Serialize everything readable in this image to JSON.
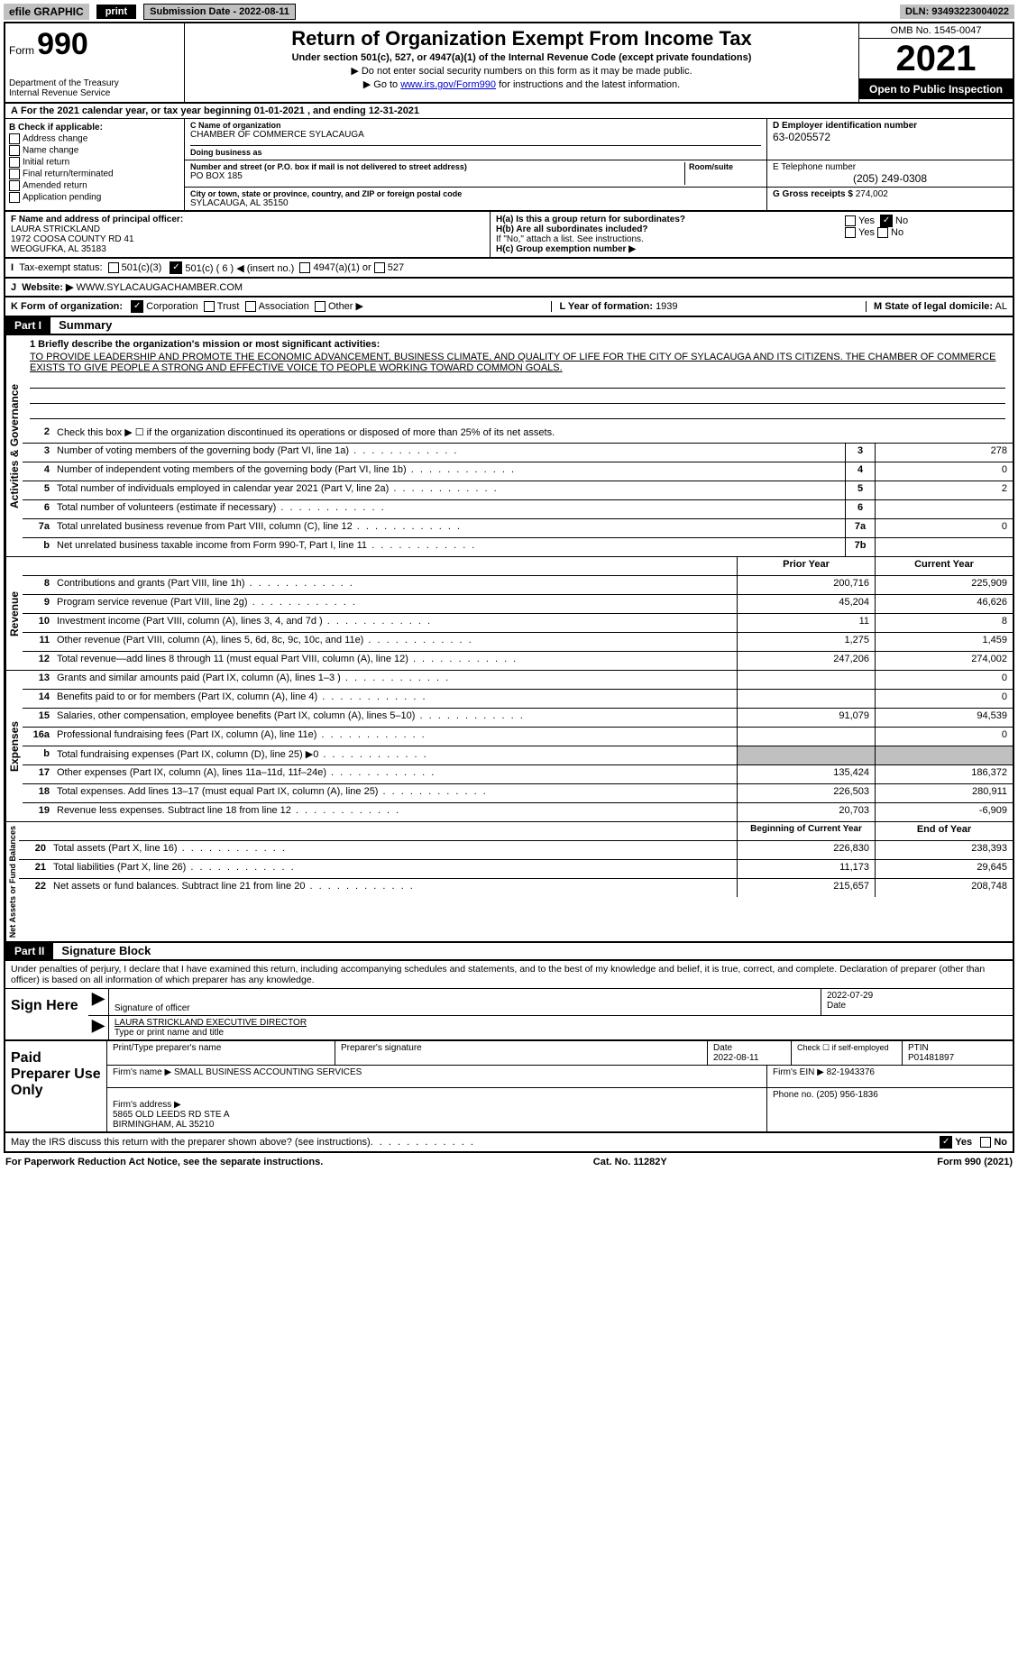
{
  "topbar": {
    "efile": "efile GRAPHIC",
    "print": "print",
    "submit_label": "Submission Date - 2022-08-11",
    "dln": "DLN: 93493223004022"
  },
  "header": {
    "form_word": "Form",
    "form_num": "990",
    "dept": "Department of the Treasury\nInternal Revenue Service",
    "title": "Return of Organization Exempt From Income Tax",
    "subtitle": "Under section 501(c), 527, or 4947(a)(1) of the Internal Revenue Code (except private foundations)",
    "note1": "▶ Do not enter social security numbers on this form as it may be made public.",
    "note2_pre": "▶ Go to ",
    "note2_link": "www.irs.gov/Form990",
    "note2_post": " for instructions and the latest information.",
    "omb": "OMB No. 1545-0047",
    "year": "2021",
    "open": "Open to Public Inspection"
  },
  "period": "For the 2021 calendar year, or tax year beginning 01-01-2021    , and ending 12-31-2021",
  "boxB": {
    "label": "B Check if applicable:",
    "items": [
      "Address change",
      "Name change",
      "Initial return",
      "Final return/terminated",
      "Amended return",
      "Application pending"
    ]
  },
  "boxC": {
    "name_lbl": "C Name of organization",
    "name": "CHAMBER OF COMMERCE SYLACAUGA",
    "dba_lbl": "Doing business as",
    "addr_lbl": "Number and street (or P.O. box if mail is not delivered to street address)",
    "room_lbl": "Room/suite",
    "addr": "PO BOX 185",
    "city_lbl": "City or town, state or province, country, and ZIP or foreign postal code",
    "city": "SYLACAUGA, AL  35150"
  },
  "boxD": {
    "ein_lbl": "D Employer identification number",
    "ein": "63-0205572",
    "phone_lbl": "E Telephone number",
    "phone": "(205) 249-0308",
    "gross_lbl": "G Gross receipts $",
    "gross": "274,002"
  },
  "boxF": {
    "lbl": "F Name and address of principal officer:",
    "name": "LAURA STRICKLAND",
    "addr1": "1972 COOSA COUNTY RD 41",
    "addr2": "WEOGUFKA, AL 35183"
  },
  "boxH": {
    "a": "H(a)  Is this a group return for subordinates?",
    "b": "H(b)  Are all subordinates included?",
    "bnote": "If \"No,\" attach a list. See instructions.",
    "c": "H(c)  Group exemption number ▶",
    "yes": "Yes",
    "no": "No"
  },
  "boxI": {
    "lbl": "Tax-exempt status:",
    "opts": [
      "501(c)(3)",
      "501(c) ( 6 ) ◀ (insert no.)",
      "4947(a)(1) or",
      "527"
    ]
  },
  "boxJ": {
    "lbl": "Website: ▶",
    "val": "WWW.SYLACAUGACHAMBER.COM"
  },
  "boxK": {
    "lbl": "K Form of organization:",
    "opts": [
      "Corporation",
      "Trust",
      "Association",
      "Other ▶"
    ]
  },
  "boxL": {
    "lbl": "L Year of formation:",
    "val": "1939"
  },
  "boxM": {
    "lbl": "M State of legal domicile:",
    "val": "AL"
  },
  "part1": {
    "header": "Part I",
    "title": "Summary",
    "mission_lbl": "1  Briefly describe the organization's mission or most significant activities:",
    "mission": "TO PROVIDE LEADERSHIP AND PROMOTE THE ECONOMIC ADVANCEMENT, BUSINESS CLIMATE, AND QUALITY OF LIFE FOR THE CITY OF SYLACAUGA AND ITS CITIZENS. THE CHAMBER OF COMMERCE EXISTS TO GIVE PEOPLE A STRONG AND EFFECTIVE VOICE TO PEOPLE WORKING TOWARD COMMON GOALS.",
    "line2": "Check this box ▶ ☐ if the organization discontinued its operations or disposed of more than 25% of its net assets.",
    "sections": {
      "gov_label": "Activities & Governance",
      "rev_label": "Revenue",
      "exp_label": "Expenses",
      "net_label": "Net Assets or Fund Balances"
    },
    "gov_lines": [
      {
        "n": "3",
        "t": "Number of voting members of the governing body (Part VI, line 1a)",
        "box": "3",
        "v": "278"
      },
      {
        "n": "4",
        "t": "Number of independent voting members of the governing body (Part VI, line 1b)",
        "box": "4",
        "v": "0"
      },
      {
        "n": "5",
        "t": "Total number of individuals employed in calendar year 2021 (Part V, line 2a)",
        "box": "5",
        "v": "2"
      },
      {
        "n": "6",
        "t": "Total number of volunteers (estimate if necessary)",
        "box": "6",
        "v": ""
      },
      {
        "n": "7a",
        "t": "Total unrelated business revenue from Part VIII, column (C), line 12",
        "box": "7a",
        "v": "0"
      },
      {
        "n": "b",
        "t": "Net unrelated business taxable income from Form 990-T, Part I, line 11",
        "box": "7b",
        "v": ""
      }
    ],
    "col_prior": "Prior Year",
    "col_current": "Current Year",
    "rev_lines": [
      {
        "n": "8",
        "t": "Contributions and grants (Part VIII, line 1h)",
        "p": "200,716",
        "c": "225,909"
      },
      {
        "n": "9",
        "t": "Program service revenue (Part VIII, line 2g)",
        "p": "45,204",
        "c": "46,626"
      },
      {
        "n": "10",
        "t": "Investment income (Part VIII, column (A), lines 3, 4, and 7d )",
        "p": "11",
        "c": "8"
      },
      {
        "n": "11",
        "t": "Other revenue (Part VIII, column (A), lines 5, 6d, 8c, 9c, 10c, and 11e)",
        "p": "1,275",
        "c": "1,459"
      },
      {
        "n": "12",
        "t": "Total revenue—add lines 8 through 11 (must equal Part VIII, column (A), line 12)",
        "p": "247,206",
        "c": "274,002"
      }
    ],
    "exp_lines": [
      {
        "n": "13",
        "t": "Grants and similar amounts paid (Part IX, column (A), lines 1–3 )",
        "p": "",
        "c": "0"
      },
      {
        "n": "14",
        "t": "Benefits paid to or for members (Part IX, column (A), line 4)",
        "p": "",
        "c": "0"
      },
      {
        "n": "15",
        "t": "Salaries, other compensation, employee benefits (Part IX, column (A), lines 5–10)",
        "p": "91,079",
        "c": "94,539"
      },
      {
        "n": "16a",
        "t": "Professional fundraising fees (Part IX, column (A), line 11e)",
        "p": "",
        "c": "0"
      },
      {
        "n": "b",
        "t": "Total fundraising expenses (Part IX, column (D), line 25) ▶0",
        "p": "SHADE",
        "c": "SHADE"
      },
      {
        "n": "17",
        "t": "Other expenses (Part IX, column (A), lines 11a–11d, 11f–24e)",
        "p": "135,424",
        "c": "186,372"
      },
      {
        "n": "18",
        "t": "Total expenses. Add lines 13–17 (must equal Part IX, column (A), line 25)",
        "p": "226,503",
        "c": "280,911"
      },
      {
        "n": "19",
        "t": "Revenue less expenses. Subtract line 18 from line 12",
        "p": "20,703",
        "c": "-6,909"
      }
    ],
    "col_begin": "Beginning of Current Year",
    "col_end": "End of Year",
    "net_lines": [
      {
        "n": "20",
        "t": "Total assets (Part X, line 16)",
        "p": "226,830",
        "c": "238,393"
      },
      {
        "n": "21",
        "t": "Total liabilities (Part X, line 26)",
        "p": "11,173",
        "c": "29,645"
      },
      {
        "n": "22",
        "t": "Net assets or fund balances. Subtract line 21 from line 20",
        "p": "215,657",
        "c": "208,748"
      }
    ]
  },
  "part2": {
    "header": "Part II",
    "title": "Signature Block",
    "penalties": "Under penalties of perjury, I declare that I have examined this return, including accompanying schedules and statements, and to the best of my knowledge and belief, it is true, correct, and complete. Declaration of preparer (other than officer) is based on all information of which preparer has any knowledge."
  },
  "sign": {
    "label": "Sign Here",
    "sig_lbl": "Signature of officer",
    "date_lbl": "Date",
    "date": "2022-07-29",
    "name": "LAURA STRICKLAND EXECUTIVE DIRECTOR",
    "name_lbl": "Type or print name and title"
  },
  "prep": {
    "label": "Paid Preparer Use Only",
    "h1": "Print/Type preparer's name",
    "h2": "Preparer's signature",
    "h3": "Date",
    "date": "2022-08-11",
    "h4": "Check ☐ if self-employed",
    "h5_lbl": "PTIN",
    "h5": "P01481897",
    "firm_name_lbl": "Firm's name    ▶",
    "firm_name": "SMALL BUSINESS ACCOUNTING SERVICES",
    "firm_ein_lbl": "Firm's EIN ▶",
    "firm_ein": "82-1943376",
    "firm_addr_lbl": "Firm's address ▶",
    "firm_addr": "5865 OLD LEEDS RD STE A\nBIRMINGHAM, AL 35210",
    "phone_lbl": "Phone no.",
    "phone": "(205) 956-1836"
  },
  "discuss": "May the IRS discuss this return with the preparer shown above? (see instructions)",
  "footer": {
    "left": "For Paperwork Reduction Act Notice, see the separate instructions.",
    "mid": "Cat. No. 11282Y",
    "right": "Form 990 (2021)"
  }
}
